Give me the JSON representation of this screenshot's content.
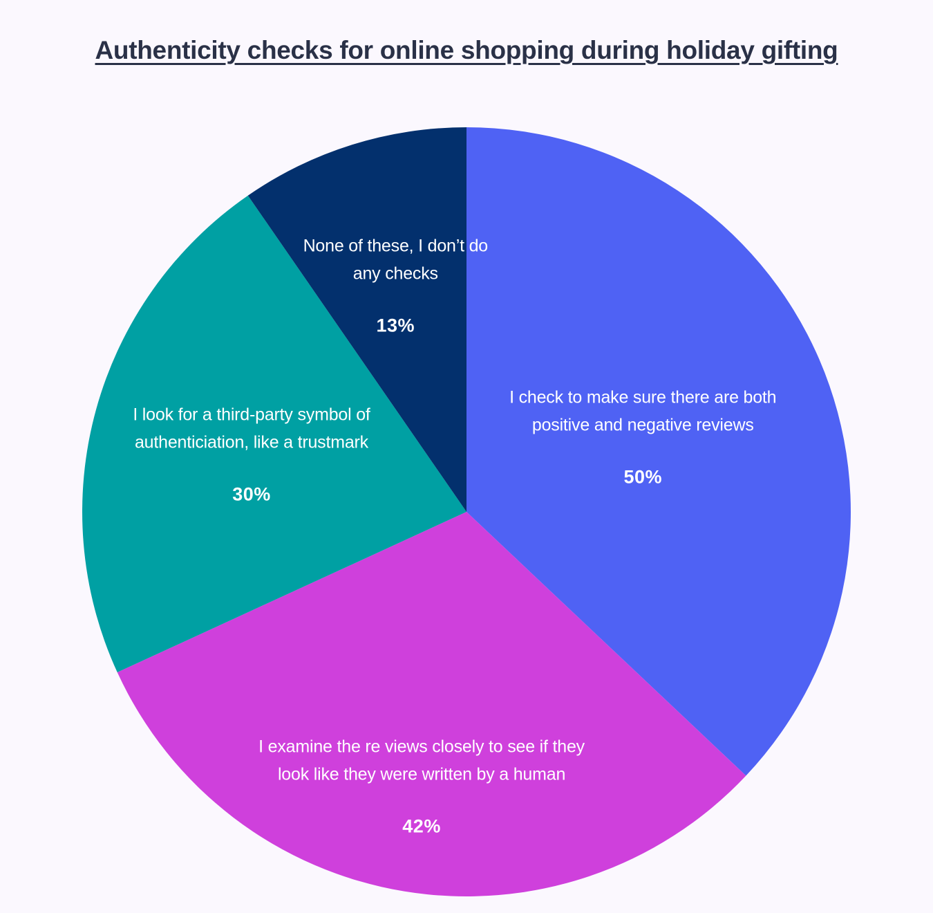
{
  "chart_data": {
    "type": "pie",
    "title": "Authenticity checks for online shopping during holiday gifting",
    "slices": [
      {
        "label": "I check to make sure there are both positive and negative reviews",
        "value": 50,
        "value_label": "50%",
        "color": "#4f62f4"
      },
      {
        "label": "I examine the re views closely to see if they look like they were written by a human",
        "value": 42,
        "value_label": "42%",
        "color": "#cf40dc"
      },
      {
        "label": "I look for a third-party symbol of authenticiation, like a trustmark",
        "value": 30,
        "value_label": "30%",
        "color": "#00a0a3"
      },
      {
        "label": "None of these, I don’t do any checks",
        "value": 13,
        "value_label": "13%",
        "color": "#03306d"
      }
    ]
  }
}
